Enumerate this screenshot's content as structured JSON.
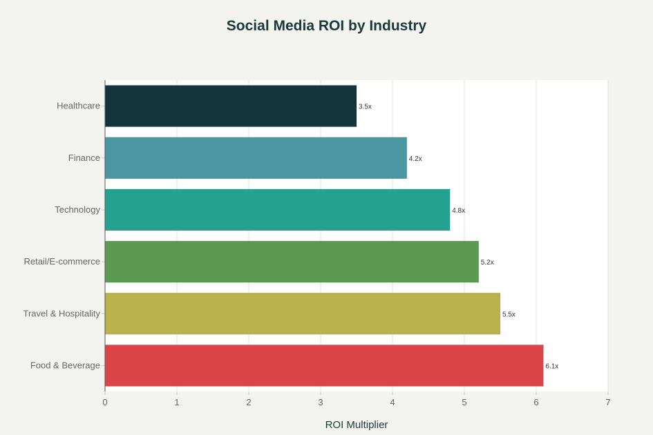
{
  "chart_data": {
    "type": "bar",
    "orientation": "horizontal",
    "title": "Social Media ROI by Industry",
    "xlabel": "ROI Multiplier",
    "ylabel": "",
    "xlim": [
      0,
      7
    ],
    "xticks": [
      0,
      1,
      2,
      3,
      4,
      5,
      6,
      7
    ],
    "grid": true,
    "categories": [
      "Healthcare",
      "Finance",
      "Technology",
      "Retail/E-commerce",
      "Travel & Hospitality",
      "Food & Beverage"
    ],
    "values": [
      3.5,
      4.2,
      4.8,
      5.2,
      5.5,
      6.1
    ],
    "data_labels": [
      "3.5x",
      "4.2x",
      "4.8x",
      "5.2x",
      "5.5x",
      "6.1x"
    ],
    "colors": [
      "#13343b",
      "#4a96a2",
      "#25a190",
      "#5c9a52",
      "#b9b24d",
      "#db4548"
    ]
  }
}
